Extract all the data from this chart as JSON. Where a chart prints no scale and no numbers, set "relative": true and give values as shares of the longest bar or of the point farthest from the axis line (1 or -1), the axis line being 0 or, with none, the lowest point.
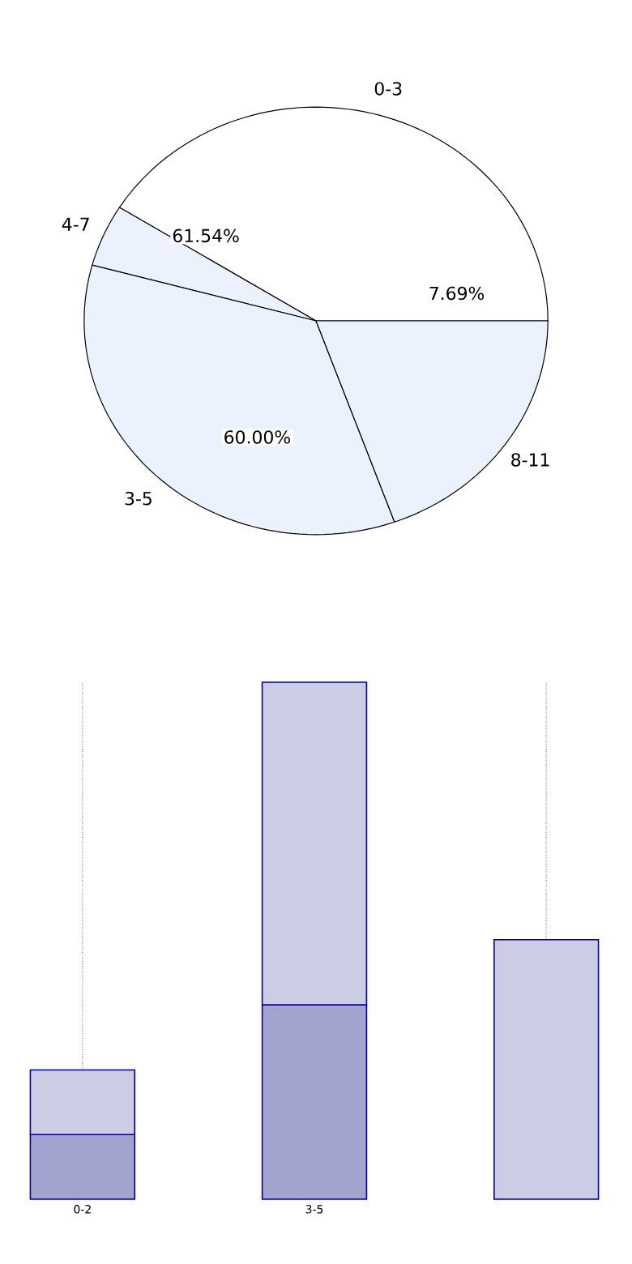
{
  "chart_data": [
    {
      "type": "pie",
      "categories": [
        "0-3",
        "4-7",
        "3-5",
        "8-11"
      ],
      "values": [
        41.1,
        4.7,
        34.7,
        19.5
      ],
      "colors": [
        "#ffffff",
        "#ebf1fd",
        "#ebf1fd",
        "#ebf1fd"
      ],
      "annotations": [
        "7.69%",
        "61.54%",
        "60.00%"
      ]
    },
    {
      "type": "bar",
      "categories": [
        "0-2",
        "3-5",
        null
      ],
      "stacked": true,
      "relative": true,
      "grid": "x",
      "series": [
        {
          "color": "#a3a3d0",
          "values": [
            0.125,
            0.376,
            null
          ]
        },
        {
          "color": "#ccccE4",
          "values": [
            0.125,
            0.624,
            0.502
          ]
        }
      ]
    }
  ]
}
